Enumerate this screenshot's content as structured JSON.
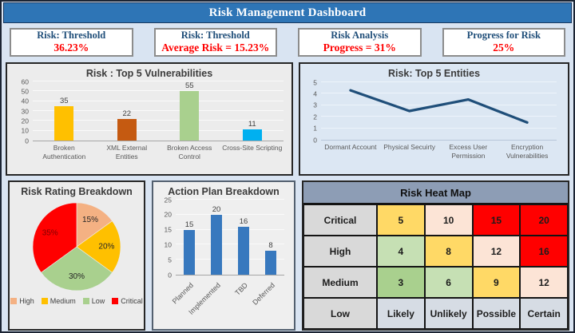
{
  "title": "Risk Management Dashboard",
  "colors": {
    "titlebar_bg": "#2E75B6",
    "page_bg": "#D9E4F2",
    "kpi_title_text": "#1F4E79",
    "kpi_value_text": "#FF0000",
    "heat_header_bg": "#8D9DB5"
  },
  "kpis": [
    {
      "title": "Risk: Threshold",
      "value": "36.23%"
    },
    {
      "title": "Risk: Threshold",
      "value": "Average Risk = 15.23%"
    },
    {
      "title": "Risk Analysis",
      "value": "Progress = 31%"
    },
    {
      "title": "Progress for Risk",
      "value": "25%"
    }
  ],
  "chart_data": [
    {
      "id": "top5_vulnerabilities",
      "type": "bar",
      "title": "Risk : Top 5 Vulnerabilities",
      "categories": [
        [
          "Broken",
          "Authentication"
        ],
        [
          "XML External",
          "Entities"
        ],
        [
          "Broken Access",
          "Control"
        ],
        [
          "Cross-Site Scripting"
        ]
      ],
      "values": [
        35,
        22,
        55,
        11
      ],
      "data_labels": [
        "35",
        "22",
        "55",
        "11"
      ],
      "bar_colors": [
        "#FFC000",
        "#C55A11",
        "#A9D08E",
        "#00B0F0"
      ],
      "ylim": [
        0,
        60
      ],
      "yticks": [
        0,
        10,
        20,
        30,
        40,
        50,
        60
      ],
      "grid": true,
      "legend": false
    },
    {
      "id": "top5_entities",
      "type": "line",
      "title": "Risk: Top 5 Entities",
      "categories": [
        [
          "Dormant Account"
        ],
        [
          "Physical Secuirty"
        ],
        [
          "Excess User",
          "Permission"
        ],
        [
          "Encryption",
          "Vulnerabilities"
        ]
      ],
      "values": [
        4.3,
        2.5,
        3.5,
        1.5
      ],
      "line_color": "#1F4E79",
      "ylim": [
        0,
        5
      ],
      "yticks": [
        0,
        1,
        2,
        3,
        4,
        5
      ],
      "grid": true,
      "legend": false
    },
    {
      "id": "risk_rating_breakdown",
      "type": "pie",
      "title": "Risk Rating Breakdown",
      "labels": [
        "High",
        "Medium",
        "Low",
        "Critical"
      ],
      "values": [
        15,
        20,
        30,
        35
      ],
      "data_labels": [
        "15%",
        "20%",
        "30%",
        "35%"
      ],
      "slice_colors": [
        "#F4B183",
        "#FFC000",
        "#A9D08E",
        "#FF0000"
      ],
      "slice_label_colors": [
        "#262626",
        "#262626",
        "#262626",
        "#7F0000"
      ],
      "start": "top-clockwise",
      "legend_position": "bottom"
    },
    {
      "id": "action_plan_breakdown",
      "type": "bar",
      "title": "Action Plan Breakdown",
      "categories": [
        "Planned",
        "Implemented",
        "TBD",
        "Deferred"
      ],
      "values": [
        15,
        20,
        16,
        8
      ],
      "data_labels": [
        "15",
        "20",
        "16",
        "8"
      ],
      "bar_colors": "#3778BE",
      "ylim": [
        0,
        25
      ],
      "yticks": [
        0,
        5,
        10,
        15,
        20,
        25
      ],
      "xlabel_rotation": 45,
      "grid": true,
      "legend": false
    },
    {
      "id": "risk_heat_map",
      "type": "heatmap",
      "title": "Risk Heat Map",
      "row_labels": [
        "Critical",
        "High",
        "Medium",
        "Low"
      ],
      "bottom_row_labels": [
        "Likely",
        "Unlikely",
        "Possible",
        "Certain"
      ],
      "rows": [
        {
          "label": "Critical",
          "cells": [
            {
              "text": "5",
              "bg": "#FFD966"
            },
            {
              "text": "10",
              "bg": "#FCE4D6"
            },
            {
              "text": "15",
              "bg": "#FF0000"
            },
            {
              "text": "20",
              "bg": "#FF0000"
            }
          ]
        },
        {
          "label": "High",
          "cells": [
            {
              "text": "4",
              "bg": "#C6E0B4"
            },
            {
              "text": "8",
              "bg": "#FFD966"
            },
            {
              "text": "12",
              "bg": "#FCE4D6"
            },
            {
              "text": "16",
              "bg": "#FF0000"
            }
          ]
        },
        {
          "label": "Medium",
          "cells": [
            {
              "text": "3",
              "bg": "#A9D08E"
            },
            {
              "text": "6",
              "bg": "#C6E0B4"
            },
            {
              "text": "9",
              "bg": "#FFD966"
            },
            {
              "text": "12",
              "bg": "#FCE4D6"
            }
          ]
        },
        {
          "label": "Low",
          "cells": [
            {
              "text": "Likely",
              "bg": "#D6DCE4"
            },
            {
              "text": "Unlikely",
              "bg": "#D6DCE4"
            },
            {
              "text": "Possible",
              "bg": "#D6DCE4"
            },
            {
              "text": "Certain",
              "bg": "#D6DCE4"
            }
          ]
        }
      ]
    }
  ]
}
